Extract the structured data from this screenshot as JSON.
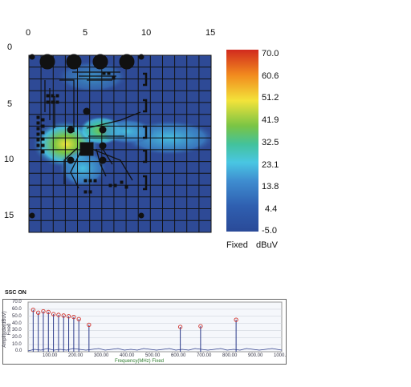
{
  "scan_map": {
    "x_axis_ticks": [
      "0",
      "5",
      "10",
      "15"
    ],
    "y_axis_ticks": [
      "0",
      "5",
      "10",
      "15"
    ],
    "colorbar": {
      "ticks": [
        "70.0",
        "60.6",
        "51.2",
        "41.9",
        "32.5",
        "23.1",
        "13.8",
        "4.4",
        "-5.0"
      ],
      "footer_left": "Fixed",
      "footer_right": "dBuV",
      "colors": [
        "#d12a1e",
        "#f28b1e",
        "#f3e33a",
        "#79c445",
        "#43c29c",
        "#49c6e3",
        "#3f8ed0",
        "#2f5fb0",
        "#2a4a98"
      ]
    },
    "background_color": "#2e4a96"
  },
  "spectrum": {
    "title": "SSC ON",
    "ylabel": "Amplitude(dBuV) Fixed",
    "xlabel": "Frequency(MHz) Fixed",
    "y_ticks": [
      "70.0",
      "60.0",
      "50.0",
      "40.0",
      "30.0",
      "20.0",
      "10.0",
      "0.0"
    ],
    "x_ticks": [
      "100.00",
      "200.00",
      "300.00",
      "400.00",
      "500.00",
      "600.00",
      "700.00",
      "800.00",
      "900.00",
      "1000."
    ]
  },
  "chart_data": {
    "type": "line",
    "title": "SSC ON",
    "xlabel": "Frequency(MHz) Fixed",
    "ylabel": "Amplitude(dBuV) Fixed",
    "xlim": [
      0,
      1000
    ],
    "ylim": [
      0,
      70
    ],
    "peaks": [
      {
        "x": 20,
        "y": 59
      },
      {
        "x": 40,
        "y": 55
      },
      {
        "x": 60,
        "y": 57
      },
      {
        "x": 80,
        "y": 56
      },
      {
        "x": 100,
        "y": 53
      },
      {
        "x": 120,
        "y": 52
      },
      {
        "x": 140,
        "y": 51
      },
      {
        "x": 160,
        "y": 50
      },
      {
        "x": 180,
        "y": 49
      },
      {
        "x": 200,
        "y": 46
      },
      {
        "x": 240,
        "y": 38
      },
      {
        "x": 600,
        "y": 35
      },
      {
        "x": 680,
        "y": 36
      },
      {
        "x": 820,
        "y": 45
      }
    ]
  }
}
